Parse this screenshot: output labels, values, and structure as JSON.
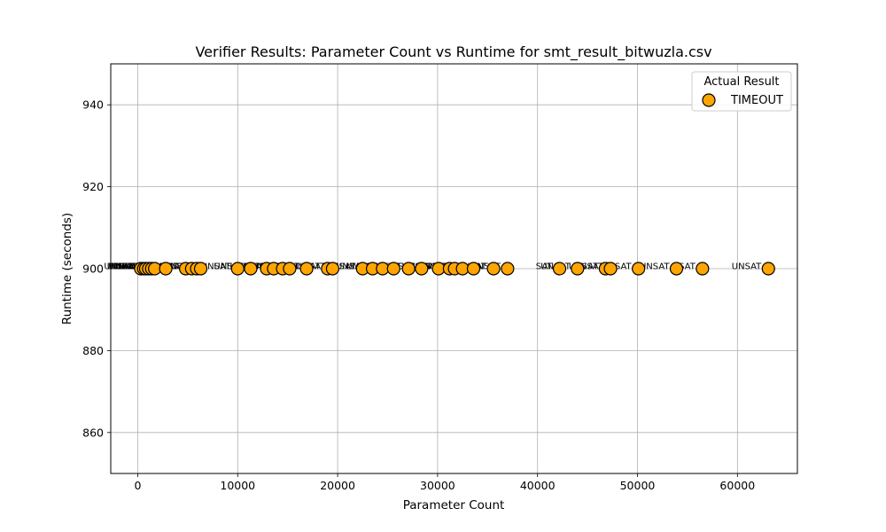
{
  "chart_data": {
    "type": "scatter",
    "title": "Verifier Results: Parameter Count vs Runtime for smt_result_bitwuzla.csv",
    "xlabel": "Parameter Count",
    "ylabel": "Runtime (seconds)",
    "xlim": [
      -2700,
      66000
    ],
    "ylim": [
      850,
      950
    ],
    "xticks": [
      "0",
      "10000",
      "20000",
      "30000",
      "40000",
      "50000",
      "60000"
    ],
    "yticks": [
      "860",
      "880",
      "900",
      "920",
      "940"
    ],
    "xtick_values": [
      0,
      10000,
      20000,
      30000,
      40000,
      50000,
      60000
    ],
    "ytick_values": [
      860,
      880,
      900,
      920,
      940
    ],
    "grid": true,
    "legend": {
      "title": "Actual Result",
      "placement": "top-right",
      "entries": [
        {
          "label": "TIMEOUT",
          "color": "#FFA500"
        }
      ]
    },
    "series": [
      {
        "name": "TIMEOUT",
        "color": "#FFA500",
        "edge_color": "#000000",
        "x": [
          300,
          600,
          800,
          1100,
          1400,
          1700,
          2800,
          4800,
          5400,
          5900,
          6300,
          10000,
          11300,
          12900,
          13600,
          14500,
          15200,
          16900,
          19000,
          19500,
          22500,
          23500,
          24500,
          25600,
          27100,
          28400,
          30100,
          31200,
          31700,
          32500,
          33600,
          35600,
          37000,
          42200,
          44000,
          46800,
          47300,
          50100,
          53900,
          56500,
          63100
        ],
        "y": [
          900,
          900,
          900,
          900,
          900,
          900,
          900,
          900,
          900,
          900,
          900,
          900,
          900,
          900,
          900,
          900,
          900,
          900,
          900,
          900,
          900,
          900,
          900,
          900,
          900,
          900,
          900,
          900,
          900,
          900,
          900,
          900,
          900,
          900,
          900,
          900,
          900,
          900,
          900,
          900,
          900
        ],
        "labels": [
          "UNSAT",
          "UNSAT",
          "UNSAT",
          "UNSAT",
          "UNSAT",
          "UNSAT",
          "UNSAT",
          "UNSAT",
          "UNSAT",
          "UNSAT",
          "UNSAT",
          "UNSAT",
          "UNSAT",
          "UNSAT",
          "UNSAT",
          "UNSAT",
          "UNSAT",
          "UNSAT",
          "UNSAT",
          "UNSAT",
          "UNSAT",
          "UNSAT",
          "UNSAT",
          "UNSAT",
          "UNSAT",
          "UNSAT",
          "UNSAT",
          "UNSAT",
          "UNSAT",
          "UNSAT",
          "UNSAT",
          "UNSAT",
          "UNSAT",
          "SAT",
          "UNSAT",
          "UNSAT",
          "UNSAT",
          "UNSAT",
          "UNSAT",
          "SAT",
          "UNSAT"
        ]
      }
    ]
  }
}
